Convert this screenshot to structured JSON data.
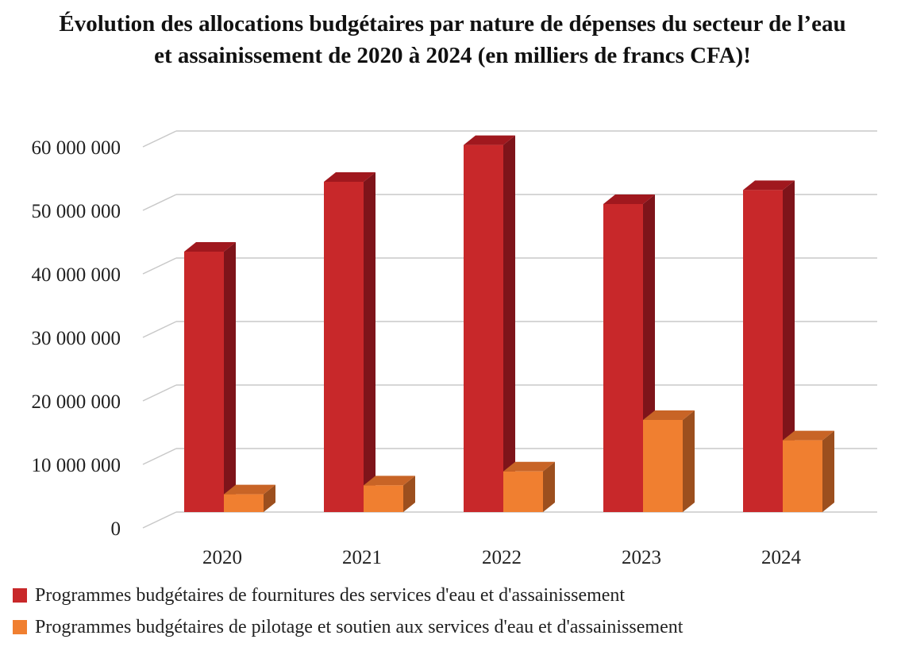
{
  "title_lines": [
    "Évolution des allocations budgétaires par nature de dépenses du secteur de l’eau",
    "et assainissement de 2020 à 2024 (en milliers de francs CFA)!"
  ],
  "colors": {
    "series1": "#C8282A",
    "series1_side": "#7E141A",
    "series1_top": "#A0181E",
    "series2": "#F07F30",
    "series2_side": "#9C4F1E",
    "series2_top": "#C86426",
    "grid": "#C8C8C8"
  },
  "chart_data": {
    "type": "bar",
    "categories": [
      "2020",
      "2021",
      "2022",
      "2023",
      "2024"
    ],
    "series": [
      {
        "name": "Programmes budgétaires de fournitures des services d'eau et d'assainissement",
        "values": [
          41000000,
          52000000,
          57800000,
          48500000,
          50700000
        ]
      },
      {
        "name": "Programmes budgétaires de pilotage et soutien aux services d'eau et d'assainissement",
        "values": [
          2800000,
          4200000,
          6400000,
          14500000,
          11300000
        ]
      }
    ],
    "ytick_labels": [
      "0",
      "10 000 000",
      "20 000 000",
      "30 000 000",
      "40 000 000",
      "50 000 000",
      "60 000 000"
    ],
    "ylim": [
      0,
      60000000
    ],
    "grid": true,
    "style": "3d-clustered-column",
    "legend_position": "bottom"
  }
}
